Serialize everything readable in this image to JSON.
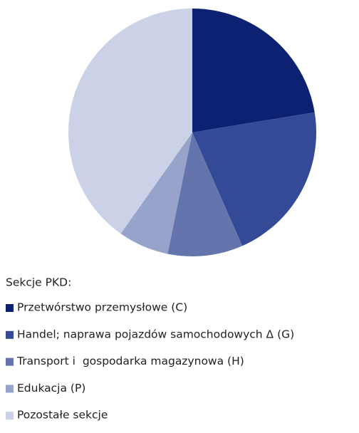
{
  "chart_data": {
    "type": "pie",
    "legend_title": "Sekcje PKD:",
    "categories": [
      "Przetwórstwo przemysłowe (C)",
      "Handel; naprawa pojazdów samochodowych Δ (G)",
      "Transport i  gospodarka magazynowa (H)",
      "Edukacja (P)",
      "Pozostałe sekcje"
    ],
    "values": [
      22.4,
      21.0,
      9.8,
      6.6,
      40.2
    ],
    "colors": [
      "#0c2172",
      "#344a96",
      "#6475ad",
      "#98a3cb",
      "#cbd1e6"
    ]
  }
}
